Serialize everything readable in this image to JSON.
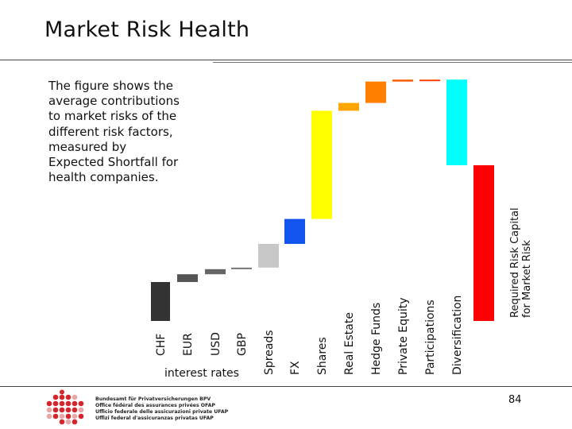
{
  "title": "Market Risk Health",
  "description": "The figure shows the average contributions to market risks of the different risk factors, measured by Expected Shortfall for health companies.",
  "page_number": "84",
  "agency_lines": [
    "Bundesamt für Privatversicherungen BPV",
    "Office fédéral des assurances privées OFAP",
    "Ufficio federale delle assicurazioni private UFAP",
    "Uffizi federal d'assicuranzas privatas UFAP"
  ],
  "chart_data": {
    "type": "bar",
    "subtype": "waterfall",
    "categories": [
      "CHF",
      "EUR",
      "USD",
      "GBP",
      "Spreads",
      "FX",
      "Shares",
      "Real Estate",
      "Hedge Funds",
      "Private Equity",
      "Participations",
      "Diversification",
      "Required Risk Capital for Market Risk"
    ],
    "group_label": "interest rates",
    "group_members": [
      "CHF",
      "EUR",
      "USD",
      "GBP"
    ],
    "bars": [
      {
        "category": "CHF",
        "start": 0,
        "end": 10,
        "color": "#333333"
      },
      {
        "category": "EUR",
        "start": 10,
        "end": 12,
        "color": "#555555"
      },
      {
        "category": "USD",
        "start": 12,
        "end": 13.3,
        "color": "#666666"
      },
      {
        "category": "GBP",
        "start": 13.3,
        "end": 13.7,
        "color": "#777777"
      },
      {
        "category": "Spreads",
        "start": 13.7,
        "end": 19.8,
        "color": "#c8c8c8"
      },
      {
        "category": "FX",
        "start": 26.2,
        "end": 19.8,
        "color": "#1155ee"
      },
      {
        "category": "Shares",
        "start": 26.2,
        "end": 54.0,
        "color": "#ffff00"
      },
      {
        "category": "Real Estate",
        "start": 54.0,
        "end": 56.0,
        "color": "#ffa500"
      },
      {
        "category": "Hedge Funds",
        "start": 56.0,
        "end": 61.5,
        "color": "#ff7f00"
      },
      {
        "category": "Private Equity",
        "start": 61.5,
        "end": 62.0,
        "color": "#ff5a00"
      },
      {
        "category": "Participations",
        "start": 62.0,
        "end": 62.0,
        "color": "#ff4000"
      },
      {
        "category": "Diversification",
        "start": 62.0,
        "end": 40.0,
        "color": "#00ffff"
      },
      {
        "category": "Required Risk Capital for Market Risk",
        "start": 0,
        "end": 40.0,
        "color": "#ff0000"
      }
    ],
    "xlabel": "",
    "ylabel": "",
    "grid": false,
    "legend": "none"
  }
}
